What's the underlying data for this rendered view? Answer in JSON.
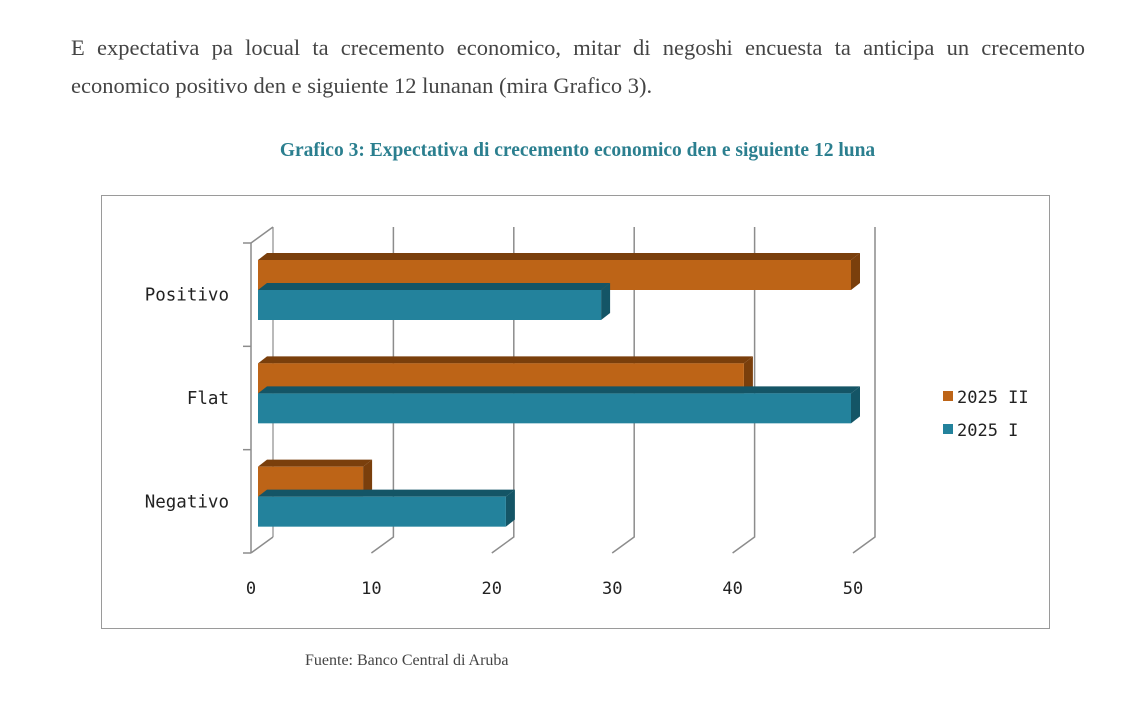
{
  "paragraph": "E expectativa pa locual ta crecemento economico, mitar di negoshi encuesta ta anticipa un crecemento economico positivo den e siguiente 12 lunanan (mira Grafico 3).",
  "source": "Fuente: Banco Central di Aruba",
  "colors": {
    "orange": "#bd6417",
    "orange_dark": "#7a3f0c",
    "teal": "#23829c",
    "teal_dark": "#145566",
    "grid": "#8c8c8c",
    "title": "#2b7f8f"
  },
  "chart_data": {
    "type": "bar",
    "orientation": "horizontal",
    "title": "Grafico 3: Expectativa di crecemento economico den e siguiente 12 luna",
    "categories": [
      "Positivo",
      "Flat",
      "Negativo"
    ],
    "series": [
      {
        "name": "2025 II",
        "values": [
          50,
          41,
          9
        ]
      },
      {
        "name": "2025 I",
        "values": [
          29,
          50,
          21
        ]
      }
    ],
    "xlim": [
      0,
      50
    ],
    "xticks": [
      "0",
      "10",
      "20",
      "30",
      "40",
      "50"
    ],
    "xlabel": "",
    "ylabel": "",
    "grid": true,
    "legend": "right"
  }
}
